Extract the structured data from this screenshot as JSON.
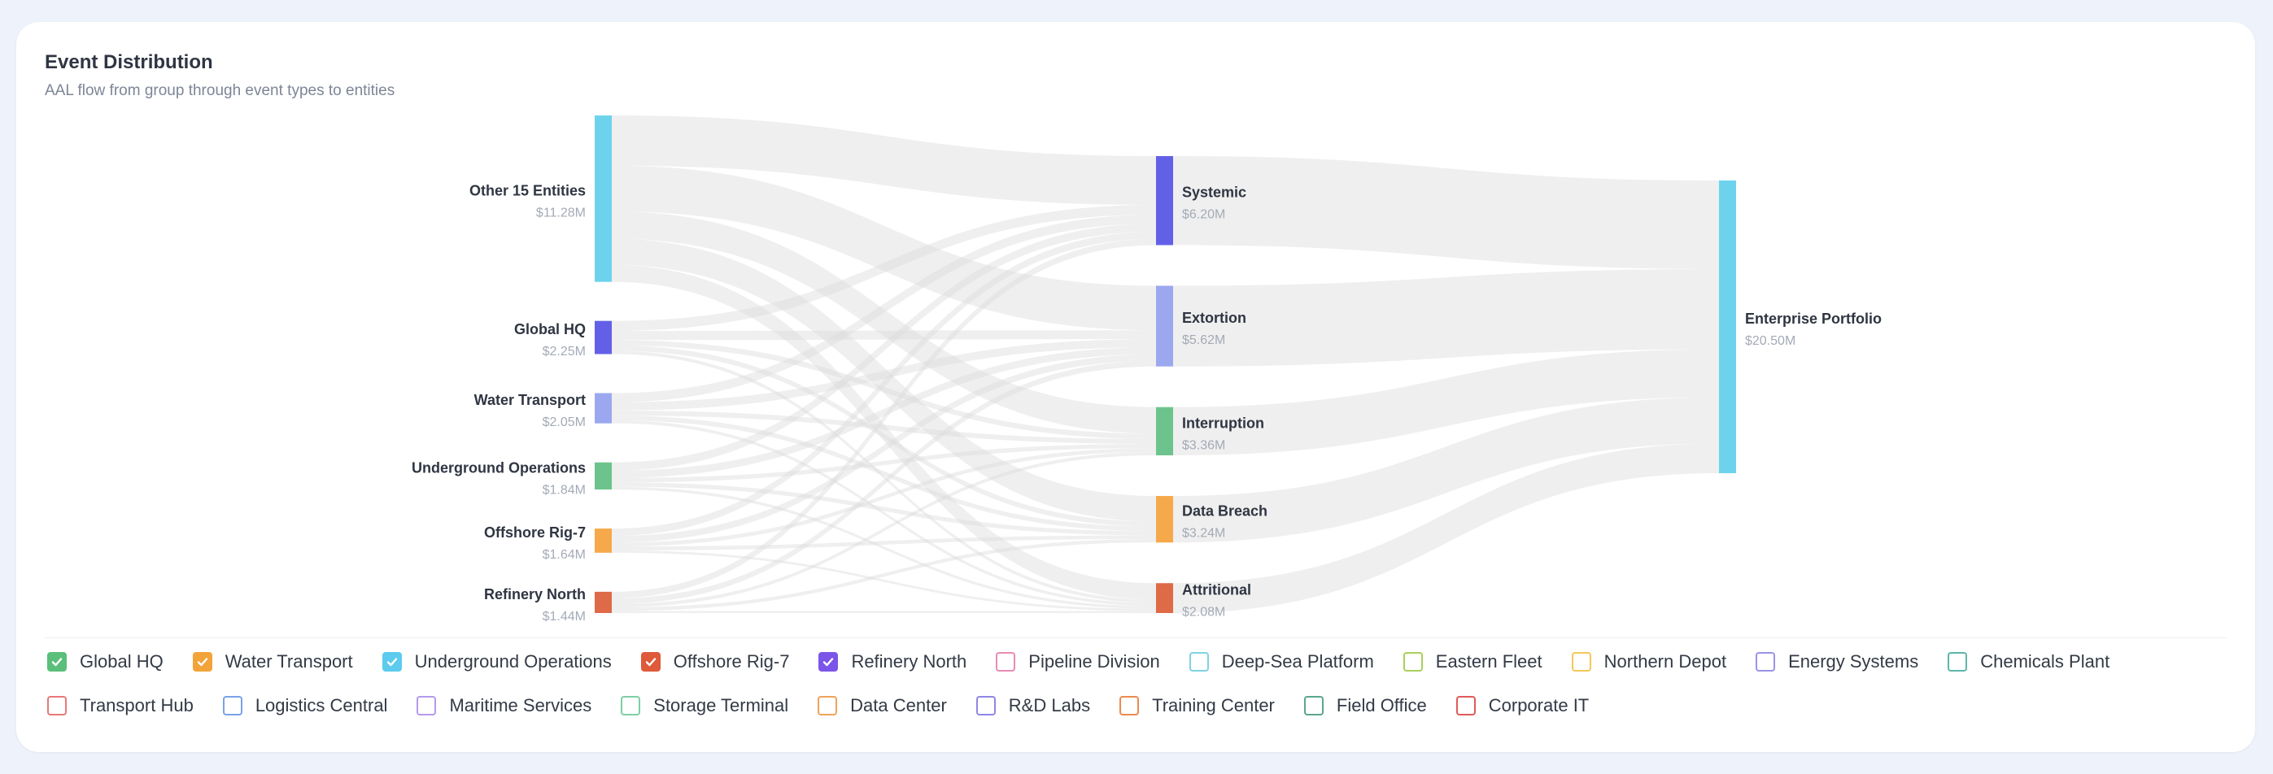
{
  "header": {
    "title": "Event Distribution",
    "subtitle": "AAL flow from group through event types to entities"
  },
  "chart_data": {
    "type": "sankey",
    "title": "Event Distribution",
    "subtitle": "AAL flow from group through event types to entities",
    "unit": "$M",
    "columns": [
      [
        {
          "id": "other",
          "name": "Other 15 Entities",
          "value_label": "$11.28M",
          "value": 11.28,
          "color": "#6dd3ec"
        },
        {
          "id": "ghq",
          "name": "Global HQ",
          "value_label": "$2.25M",
          "value": 2.25,
          "color": "#6360e8"
        },
        {
          "id": "wt",
          "name": "Water Transport",
          "value_label": "$2.05M",
          "value": 2.05,
          "color": "#9ba8ef"
        },
        {
          "id": "uo",
          "name": "Underground Operations",
          "value_label": "$1.84M",
          "value": 1.84,
          "color": "#6cc48c"
        },
        {
          "id": "or7",
          "name": "Offshore Rig-7",
          "value_label": "$1.64M",
          "value": 1.64,
          "color": "#f5a94b"
        },
        {
          "id": "rn",
          "name": "Refinery North",
          "value_label": "$1.44M",
          "value": 1.44,
          "color": "#de6a48"
        }
      ],
      [
        {
          "id": "sys",
          "name": "Systemic",
          "value_label": "$6.20M",
          "value": 6.2,
          "color": "#6360e8"
        },
        {
          "id": "ext",
          "name": "Extortion",
          "value_label": "$5.62M",
          "value": 5.62,
          "color": "#9ba8ef"
        },
        {
          "id": "int",
          "name": "Interruption",
          "value_label": "$3.36M",
          "value": 3.36,
          "color": "#6cc48c"
        },
        {
          "id": "db",
          "name": "Data Breach",
          "value_label": "$3.24M",
          "value": 3.24,
          "color": "#f5a94b"
        },
        {
          "id": "att",
          "name": "Attritional",
          "value_label": "$2.08M",
          "value": 2.08,
          "color": "#de6a48"
        }
      ],
      [
        {
          "id": "ep",
          "name": "Enterprise Portfolio",
          "value_label": "$20.50M",
          "value": 20.5,
          "color": "#6dd3ec"
        }
      ]
    ],
    "links": [
      {
        "source": "other",
        "target": "sys",
        "value": 3.4
      },
      {
        "source": "other",
        "target": "ext",
        "value": 3.1
      },
      {
        "source": "other",
        "target": "int",
        "value": 1.85
      },
      {
        "source": "other",
        "target": "db",
        "value": 1.78
      },
      {
        "source": "other",
        "target": "att",
        "value": 1.15
      },
      {
        "source": "ghq",
        "target": "sys",
        "value": 0.68
      },
      {
        "source": "ghq",
        "target": "ext",
        "value": 0.62
      },
      {
        "source": "ghq",
        "target": "int",
        "value": 0.37
      },
      {
        "source": "ghq",
        "target": "db",
        "value": 0.35
      },
      {
        "source": "ghq",
        "target": "att",
        "value": 0.23
      },
      {
        "source": "wt",
        "target": "sys",
        "value": 0.62
      },
      {
        "source": "wt",
        "target": "ext",
        "value": 0.56
      },
      {
        "source": "wt",
        "target": "int",
        "value": 0.34
      },
      {
        "source": "wt",
        "target": "db",
        "value": 0.32
      },
      {
        "source": "wt",
        "target": "att",
        "value": 0.21
      },
      {
        "source": "uo",
        "target": "sys",
        "value": 0.56
      },
      {
        "source": "uo",
        "target": "ext",
        "value": 0.5
      },
      {
        "source": "uo",
        "target": "int",
        "value": 0.3
      },
      {
        "source": "uo",
        "target": "db",
        "value": 0.29
      },
      {
        "source": "uo",
        "target": "att",
        "value": 0.19
      },
      {
        "source": "or7",
        "target": "sys",
        "value": 0.5
      },
      {
        "source": "or7",
        "target": "ext",
        "value": 0.45
      },
      {
        "source": "or7",
        "target": "int",
        "value": 0.27
      },
      {
        "source": "or7",
        "target": "db",
        "value": 0.26
      },
      {
        "source": "or7",
        "target": "att",
        "value": 0.16
      },
      {
        "source": "rn",
        "target": "sys",
        "value": 0.44
      },
      {
        "source": "rn",
        "target": "ext",
        "value": 0.39
      },
      {
        "source": "rn",
        "target": "int",
        "value": 0.23
      },
      {
        "source": "rn",
        "target": "db",
        "value": 0.24
      },
      {
        "source": "rn",
        "target": "att",
        "value": 0.14
      },
      {
        "source": "sys",
        "target": "ep",
        "value": 6.2
      },
      {
        "source": "ext",
        "target": "ep",
        "value": 5.62
      },
      {
        "source": "int",
        "target": "ep",
        "value": 3.36
      },
      {
        "source": "db",
        "target": "ep",
        "value": 3.24
      },
      {
        "source": "att",
        "target": "ep",
        "value": 2.08
      }
    ],
    "link_color": "#dcdcdc"
  },
  "legend": {
    "rows": [
      [
        {
          "label": "Global HQ",
          "checked": true,
          "color": "#5bbf7a"
        },
        {
          "label": "Water Transport",
          "checked": true,
          "color": "#f2a33a"
        },
        {
          "label": "Underground Operations",
          "checked": true,
          "color": "#5ccbed"
        },
        {
          "label": "Offshore Rig-7",
          "checked": true,
          "color": "#de5a3a"
        },
        {
          "label": "Refinery North",
          "checked": true,
          "color": "#7b55e8"
        },
        {
          "label": "Pipeline Division",
          "checked": false,
          "color": "#e98bb4"
        },
        {
          "label": "Deep-Sea Platform",
          "checked": false,
          "color": "#7ed3e3"
        },
        {
          "label": "Eastern Fleet",
          "checked": false,
          "color": "#a9cf5a"
        },
        {
          "label": "Northern Depot",
          "checked": false,
          "color": "#f5c85a"
        },
        {
          "label": "Energy Systems",
          "checked": false,
          "color": "#9a93e8"
        },
        {
          "label": "Chemicals Plant",
          "checked": false,
          "color": "#5cb6a8"
        }
      ],
      [
        {
          "label": "Transport Hub",
          "checked": false,
          "color": "#e87878"
        },
        {
          "label": "Logistics Central",
          "checked": false,
          "color": "#7aa2e8"
        },
        {
          "label": "Maritime Services",
          "checked": false,
          "color": "#b49aed"
        },
        {
          "label": "Storage Terminal",
          "checked": false,
          "color": "#7dcfa4"
        },
        {
          "label": "Data Center",
          "checked": false,
          "color": "#f0a35a"
        },
        {
          "label": "R&D Labs",
          "checked": false,
          "color": "#8f86e6"
        },
        {
          "label": "Training Center",
          "checked": false,
          "color": "#ec8a4e"
        },
        {
          "label": "Field Office",
          "checked": false,
          "color": "#5aa88a"
        },
        {
          "label": "Corporate IT",
          "checked": false,
          "color": "#e05a5a"
        }
      ]
    ]
  }
}
